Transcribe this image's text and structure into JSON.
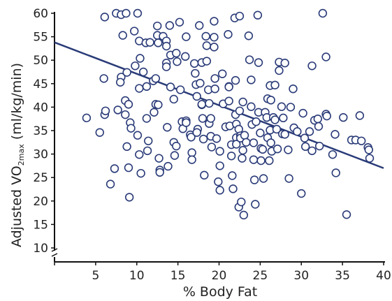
{
  "chart_data": {
    "type": "scatter",
    "title": "",
    "xlabel": "% Body Fat",
    "ylabel_main": "Adjusted VO",
    "ylabel_sub": "2max",
    "ylabel_unit": "(ml/kg/min)",
    "xlim": [
      0,
      40
    ],
    "ylim": [
      10,
      60
    ],
    "xticks": [
      "5",
      "10",
      "15",
      "20",
      "25",
      "30",
      "35",
      "40"
    ],
    "yticks": [
      "10",
      "15",
      "20",
      "25",
      "30",
      "35",
      "40",
      "45",
      "50",
      "55",
      "60"
    ],
    "colors": {
      "point_stroke": "#2a3b78",
      "line": "#2a3b78",
      "axis": "#111111"
    },
    "trend_line": {
      "x": [
        0,
        40
      ],
      "y": [
        53.8,
        27.0
      ]
    },
    "points": [
      [
        3.9,
        37.7
      ],
      [
        5.5,
        34.6
      ],
      [
        6.0,
        46.1
      ],
      [
        6.1,
        38.4
      ],
      [
        6.2,
        39.2
      ],
      [
        6.1,
        59.2
      ],
      [
        6.8,
        23.6
      ],
      [
        7.3,
        26.9
      ],
      [
        7.5,
        60.0
      ],
      [
        7.7,
        39.4
      ],
      [
        8.1,
        46.4
      ],
      [
        8.0,
        45.3
      ],
      [
        8.1,
        59.7
      ],
      [
        8.3,
        55.3
      ],
      [
        8.7,
        60.0
      ],
      [
        8.8,
        47.4
      ],
      [
        8.6,
        41.4
      ],
      [
        8.6,
        38.4
      ],
      [
        8.8,
        31.6
      ],
      [
        9.0,
        27.1
      ],
      [
        9.1,
        20.8
      ],
      [
        9.0,
        40.6
      ],
      [
        9.2,
        36.7
      ],
      [
        9.3,
        35.5
      ],
      [
        9.7,
        56.2
      ],
      [
        9.8,
        48.8
      ],
      [
        10.1,
        60.0
      ],
      [
        10.3,
        54.1
      ],
      [
        10.4,
        50.4
      ],
      [
        10.3,
        44.0
      ],
      [
        10.1,
        34.0
      ],
      [
        10.3,
        29.9
      ],
      [
        10.5,
        25.9
      ],
      [
        10.8,
        47.5
      ],
      [
        11.1,
        53.7
      ],
      [
        11.2,
        44.4
      ],
      [
        11.2,
        37.6
      ],
      [
        11.4,
        32.8
      ],
      [
        11.3,
        30.7
      ],
      [
        11.6,
        53.8
      ],
      [
        12.0,
        45.6
      ],
      [
        12.1,
        38.9
      ],
      [
        12.3,
        40.6
      ],
      [
        12.3,
        46.1
      ],
      [
        12.5,
        57.3
      ],
      [
        12.5,
        55.3
      ],
      [
        12.6,
        53.7
      ],
      [
        12.6,
        40.5
      ],
      [
        12.7,
        29.1
      ],
      [
        12.8,
        26.6
      ],
      [
        12.8,
        26.1
      ],
      [
        13.2,
        55.1
      ],
      [
        13.6,
        54.1
      ],
      [
        13.6,
        53.0
      ],
      [
        13.6,
        49.4
      ],
      [
        13.6,
        48.6
      ],
      [
        13.7,
        35.7
      ],
      [
        13.8,
        27.4
      ],
      [
        14.0,
        57.4
      ],
      [
        14.1,
        51.1
      ],
      [
        14.1,
        44.3
      ],
      [
        14.5,
        41.7
      ],
      [
        14.5,
        32.5
      ],
      [
        14.6,
        29.7
      ],
      [
        14.8,
        51.5
      ],
      [
        14.9,
        49.7
      ],
      [
        14.8,
        31.7
      ],
      [
        15.2,
        58.1
      ],
      [
        15.3,
        43.7
      ],
      [
        15.5,
        36.9
      ],
      [
        15.6,
        35.4
      ],
      [
        15.9,
        50.8
      ],
      [
        16.0,
        55.0
      ],
      [
        16.0,
        37.1
      ],
      [
        16.0,
        36.7
      ],
      [
        16.5,
        34.1
      ],
      [
        16.6,
        33.6
      ],
      [
        16.7,
        30.3
      ],
      [
        16.7,
        28.8
      ],
      [
        17.0,
        49.3
      ],
      [
        17.1,
        47.2
      ],
      [
        17.2,
        44.8
      ],
      [
        17.3,
        42.3
      ],
      [
        17.4,
        35.3
      ],
      [
        17.3,
        34.6
      ],
      [
        17.6,
        57.4
      ],
      [
        17.7,
        45.1
      ],
      [
        17.9,
        49.5
      ],
      [
        17.9,
        40.5
      ],
      [
        17.9,
        40.6
      ],
      [
        18.0,
        37.6
      ],
      [
        18.1,
        33.2
      ],
      [
        18.2,
        25.5
      ],
      [
        18.4,
        55.1
      ],
      [
        18.5,
        53.1
      ],
      [
        18.5,
        49.8
      ],
      [
        18.7,
        43.7
      ],
      [
        18.8,
        40.8
      ],
      [
        18.8,
        36.5
      ],
      [
        19.0,
        37.6
      ],
      [
        19.0,
        33.8
      ],
      [
        19.1,
        31.5
      ],
      [
        19.4,
        58.3
      ],
      [
        19.4,
        54.9
      ],
      [
        19.4,
        52.8
      ],
      [
        19.5,
        46.1
      ],
      [
        19.5,
        43.9
      ],
      [
        19.7,
        33.3
      ],
      [
        19.9,
        24.1
      ],
      [
        20.1,
        22.3
      ],
      [
        20.1,
        30.6
      ],
      [
        20.1,
        27.5
      ],
      [
        20.4,
        47.1
      ],
      [
        20.5,
        40.7
      ],
      [
        20.8,
        35.8
      ],
      [
        21.1,
        55.5
      ],
      [
        21.2,
        44.4
      ],
      [
        21.2,
        44.3
      ],
      [
        21.2,
        41.3
      ],
      [
        21.3,
        36.0
      ],
      [
        21.5,
        32.0
      ],
      [
        21.5,
        29.6
      ],
      [
        21.6,
        25.4
      ],
      [
        21.7,
        22.6
      ],
      [
        21.9,
        59.0
      ],
      [
        22.0,
        45.7
      ],
      [
        22.0,
        38.4
      ],
      [
        22.1,
        36.4
      ],
      [
        22.1,
        33.5
      ],
      [
        22.1,
        32.1
      ],
      [
        22.4,
        35.3
      ],
      [
        22.4,
        18.7
      ],
      [
        22.5,
        59.4
      ],
      [
        22.5,
        39.2
      ],
      [
        22.6,
        33.9
      ],
      [
        22.6,
        33.4
      ],
      [
        22.7,
        19.8
      ],
      [
        22.8,
        29.1
      ],
      [
        22.9,
        41.1
      ],
      [
        22.9,
        30.8
      ],
      [
        23.0,
        17.0
      ],
      [
        23.1,
        34.0
      ],
      [
        23.3,
        32.5
      ],
      [
        23.6,
        55.2
      ],
      [
        23.7,
        50.1
      ],
      [
        23.9,
        45.8
      ],
      [
        23.9,
        40.1
      ],
      [
        24.0,
        36.3
      ],
      [
        24.2,
        32.4
      ],
      [
        24.2,
        28.8
      ],
      [
        24.3,
        24.5
      ],
      [
        24.4,
        19.3
      ],
      [
        24.5,
        36.9
      ],
      [
        24.7,
        59.6
      ],
      [
        24.8,
        49.5
      ],
      [
        24.8,
        38.9
      ],
      [
        25.0,
        34.5
      ],
      [
        25.1,
        31.2
      ],
      [
        25.1,
        28.6
      ],
      [
        25.3,
        31.0
      ],
      [
        25.4,
        24.8
      ],
      [
        25.6,
        38.9
      ],
      [
        25.8,
        37.8
      ],
      [
        25.9,
        41.8
      ],
      [
        25.9,
        33.5
      ],
      [
        26.1,
        28.6
      ],
      [
        26.2,
        44.6
      ],
      [
        26.2,
        35.1
      ],
      [
        26.3,
        41.5
      ],
      [
        26.3,
        32.4
      ],
      [
        26.4,
        30.6
      ],
      [
        26.6,
        37.8
      ],
      [
        26.8,
        44.7
      ],
      [
        26.8,
        37.3
      ],
      [
        27.0,
        35.3
      ],
      [
        27.1,
        31.1
      ],
      [
        27.3,
        49.6
      ],
      [
        27.3,
        47.8
      ],
      [
        27.6,
        40.1
      ],
      [
        27.7,
        34.3
      ],
      [
        27.8,
        37.7
      ],
      [
        28.0,
        49.4
      ],
      [
        28.0,
        34.2
      ],
      [
        28.4,
        30.9
      ],
      [
        28.5,
        24.8
      ],
      [
        28.7,
        40.0
      ],
      [
        29.0,
        43.9
      ],
      [
        29.1,
        35.6
      ],
      [
        29.5,
        34.8
      ],
      [
        30.0,
        21.6
      ],
      [
        30.2,
        38.7
      ],
      [
        30.4,
        33.4
      ],
      [
        30.5,
        31.6
      ],
      [
        31.0,
        34.8
      ],
      [
        31.3,
        48.8
      ],
      [
        31.3,
        30.7
      ],
      [
        31.6,
        37.2
      ],
      [
        32.0,
        37.5
      ],
      [
        32.1,
        35.9
      ],
      [
        32.2,
        31.7
      ],
      [
        32.6,
        60.0
      ],
      [
        33.0,
        50.7
      ],
      [
        33.0,
        38.5
      ],
      [
        33.1,
        38.1
      ],
      [
        33.8,
        29.9
      ],
      [
        34.1,
        34.2
      ],
      [
        34.2,
        26.0
      ],
      [
        35.1,
        37.8
      ],
      [
        35.5,
        17.1
      ],
      [
        36.1,
        33.0
      ],
      [
        36.6,
        33.0
      ],
      [
        37.1,
        38.2
      ],
      [
        37.3,
        32.8
      ],
      [
        38.1,
        31.4
      ],
      [
        38.2,
        30.9
      ],
      [
        38.3,
        29.1
      ]
    ]
  }
}
